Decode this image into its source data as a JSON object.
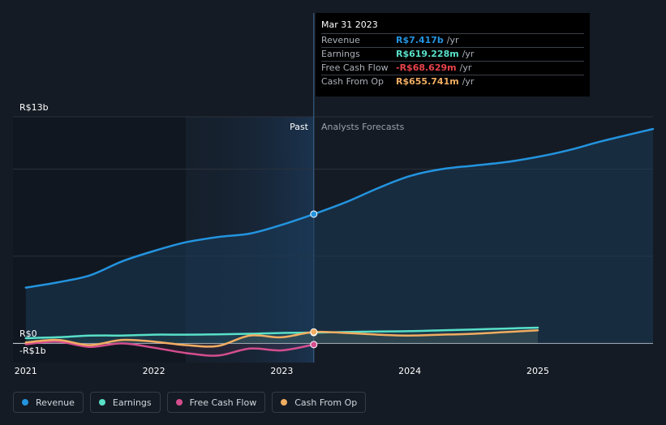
{
  "chart_data": {
    "type": "line",
    "y_label_top": "R$13b",
    "y_label_zero": "R$0",
    "y_label_bottom": "-R$1b",
    "ylim": [
      -1.1,
      13
    ],
    "xlim": [
      2020.9,
      2025.9
    ],
    "x_ticks": [
      {
        "value": 2021,
        "label": "2021"
      },
      {
        "value": 2022,
        "label": "2022"
      },
      {
        "value": 2023,
        "label": "2023"
      },
      {
        "value": 2024,
        "label": "2024"
      },
      {
        "value": 2025,
        "label": "2025"
      }
    ],
    "divider_x": 2023.25,
    "past_label": "Past",
    "forecast_label": "Analysts Forecasts",
    "series": [
      {
        "name": "Revenue",
        "color": "#2394df",
        "area": true,
        "points": [
          [
            2021.0,
            3.2
          ],
          [
            2021.25,
            3.5
          ],
          [
            2021.5,
            3.9
          ],
          [
            2021.75,
            4.7
          ],
          [
            2022.0,
            5.3
          ],
          [
            2022.25,
            5.8
          ],
          [
            2022.5,
            6.1
          ],
          [
            2022.75,
            6.3
          ],
          [
            2023.0,
            6.8
          ],
          [
            2023.25,
            7.417
          ],
          [
            2023.5,
            8.1
          ],
          [
            2023.75,
            8.9
          ],
          [
            2024.0,
            9.6
          ],
          [
            2024.25,
            10.0
          ],
          [
            2024.5,
            10.2
          ],
          [
            2024.75,
            10.4
          ],
          [
            2025.0,
            10.7
          ],
          [
            2025.25,
            11.1
          ],
          [
            2025.5,
            11.6
          ],
          [
            2025.9,
            12.3
          ]
        ]
      },
      {
        "name": "Earnings",
        "color": "#58e0c8",
        "points": [
          [
            2021.0,
            0.3
          ],
          [
            2021.25,
            0.35
          ],
          [
            2021.5,
            0.45
          ],
          [
            2021.75,
            0.45
          ],
          [
            2022.0,
            0.5
          ],
          [
            2022.25,
            0.5
          ],
          [
            2022.5,
            0.52
          ],
          [
            2022.75,
            0.55
          ],
          [
            2023.0,
            0.6
          ],
          [
            2023.25,
            0.619
          ],
          [
            2023.5,
            0.65
          ],
          [
            2023.75,
            0.68
          ],
          [
            2024.0,
            0.7
          ],
          [
            2024.25,
            0.75
          ],
          [
            2024.5,
            0.8
          ],
          [
            2024.75,
            0.85
          ],
          [
            2025.0,
            0.9
          ]
        ]
      },
      {
        "name": "Free Cash Flow",
        "color": "#d44e8e",
        "points": [
          [
            2021.0,
            -0.05
          ],
          [
            2021.25,
            0.1
          ],
          [
            2021.5,
            -0.2
          ],
          [
            2021.75,
            0.0
          ],
          [
            2022.0,
            -0.25
          ],
          [
            2022.25,
            -0.55
          ],
          [
            2022.5,
            -0.7
          ],
          [
            2022.75,
            -0.3
          ],
          [
            2023.0,
            -0.4
          ],
          [
            2023.25,
            -0.069
          ]
        ]
      },
      {
        "name": "Cash From Op",
        "color": "#f1ad62",
        "points": [
          [
            2021.0,
            0.05
          ],
          [
            2021.25,
            0.2
          ],
          [
            2021.5,
            -0.1
          ],
          [
            2021.75,
            0.2
          ],
          [
            2022.0,
            0.1
          ],
          [
            2022.25,
            -0.1
          ],
          [
            2022.5,
            -0.15
          ],
          [
            2022.75,
            0.45
          ],
          [
            2023.0,
            0.35
          ],
          [
            2023.25,
            0.656
          ],
          [
            2023.5,
            0.6
          ],
          [
            2023.75,
            0.5
          ],
          [
            2024.0,
            0.45
          ],
          [
            2024.25,
            0.5
          ],
          [
            2024.5,
            0.55
          ],
          [
            2024.75,
            0.65
          ],
          [
            2025.0,
            0.75
          ]
        ]
      }
    ]
  },
  "tooltip": {
    "date": "Mar 31 2023",
    "rows": [
      {
        "label": "Revenue",
        "value": "R$7.417b",
        "unit": "/yr",
        "color": "#2394df"
      },
      {
        "label": "Earnings",
        "value": "R$619.228m",
        "unit": "/yr",
        "color": "#58e0c8"
      },
      {
        "label": "Free Cash Flow",
        "value": "-R$68.629m",
        "unit": "/yr",
        "color": "#e8424a"
      },
      {
        "label": "Cash From Op",
        "value": "R$655.741m",
        "unit": "/yr",
        "color": "#f1ad62"
      }
    ]
  },
  "legend": [
    {
      "label": "Revenue",
      "color": "#2394df"
    },
    {
      "label": "Earnings",
      "color": "#58e0c8"
    },
    {
      "label": "Free Cash Flow",
      "color": "#d44e8e"
    },
    {
      "label": "Cash From Op",
      "color": "#f1ad62"
    }
  ]
}
